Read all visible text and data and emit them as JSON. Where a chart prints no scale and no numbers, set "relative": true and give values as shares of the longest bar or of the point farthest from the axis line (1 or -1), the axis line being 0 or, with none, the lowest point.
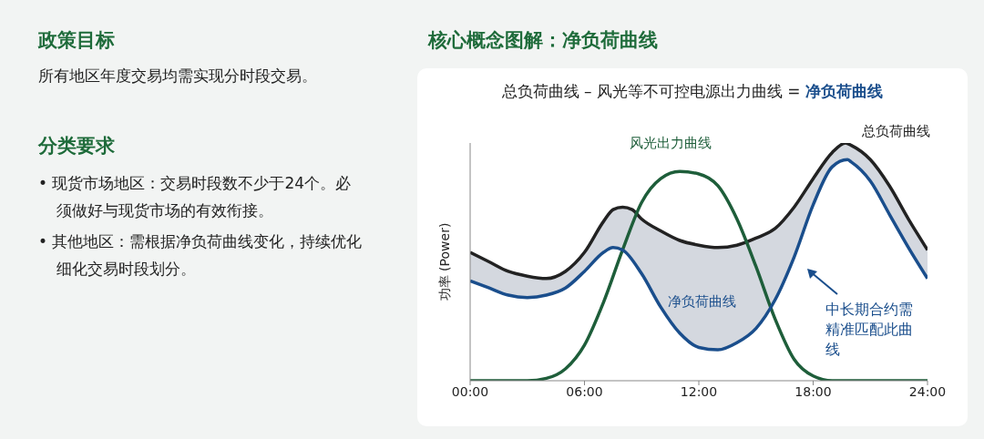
{
  "chart_data": [
    {
      "type": "other",
      "title": "政策目标",
      "subtitle": "所有地区年度交易均需实现分时段交易。",
      "annotations": [
        "分类要求",
        "• 现货市场地区：交易时段数不少于24个。必须做好与现货市场的有效衔接。",
        "• 其他地区：需根据净负荷曲线变化，持续优化细化交易时段划分。"
      ]
    },
    {
      "type": "line",
      "title": "核心概念图解：净负荷曲线",
      "subtitle": "总负荷曲线 – 风光等不可控电源出力曲线 = 净负荷曲线",
      "ylabel": "功率 (Power)",
      "relative": true,
      "xlim": [
        0,
        24
      ],
      "xticks": [
        {
          "value": 0,
          "label": "00:00"
        },
        {
          "value": 6,
          "label": "06:00"
        },
        {
          "value": 12,
          "label": "12:00"
        },
        {
          "value": 18,
          "label": "18:00"
        },
        {
          "value": 24,
          "label": "24:00"
        }
      ],
      "series": [
        {
          "name": "总负荷曲线",
          "color": "#222222",
          "x": [
            0,
            1,
            2,
            3,
            4,
            5,
            6,
            7,
            7.5,
            8,
            8.5,
            9,
            10,
            11,
            12,
            13,
            14,
            15,
            16,
            17,
            18,
            19,
            19.7,
            20,
            21,
            22,
            23,
            24
          ],
          "values": [
            0.54,
            0.5,
            0.46,
            0.44,
            0.43,
            0.46,
            0.54,
            0.67,
            0.72,
            0.73,
            0.72,
            0.68,
            0.63,
            0.59,
            0.57,
            0.56,
            0.57,
            0.6,
            0.64,
            0.73,
            0.85,
            0.96,
            1,
            0.99,
            0.93,
            0.82,
            0.68,
            0.55
          ]
        },
        {
          "name": "风光出力曲线",
          "color": "#1e5e3a",
          "x": [
            0,
            3,
            4,
            5,
            6,
            7,
            8,
            9,
            10,
            11,
            12,
            13,
            14,
            15,
            16,
            17,
            18,
            19,
            20,
            24
          ],
          "values": [
            0,
            0,
            0.01,
            0.05,
            0.15,
            0.33,
            0.55,
            0.75,
            0.85,
            0.88,
            0.87,
            0.82,
            0.68,
            0.48,
            0.26,
            0.09,
            0.02,
            0,
            0,
            0
          ]
        },
        {
          "name": "净负荷曲线",
          "color": "#1a4e8c",
          "x": [
            0,
            1,
            2,
            3,
            4,
            5,
            6,
            7,
            7.5,
            8,
            9,
            10,
            11,
            12,
            13,
            14,
            15,
            16,
            17,
            18,
            19,
            19.8,
            20,
            21,
            22,
            23,
            24
          ],
          "values": [
            0.42,
            0.39,
            0.36,
            0.35,
            0.36,
            0.39,
            0.46,
            0.54,
            0.56,
            0.55,
            0.45,
            0.31,
            0.2,
            0.14,
            0.13,
            0.16,
            0.22,
            0.34,
            0.52,
            0.74,
            0.9,
            0.93,
            0.92,
            0.84,
            0.7,
            0.56,
            0.43
          ],
          "lower": [
            0.42,
            0.39,
            0.36,
            0.35,
            0.36,
            0.39,
            0.46,
            0.54,
            0.56,
            0.55,
            0.45,
            0.31,
            0.2,
            0.14,
            0.13,
            0.16,
            0.22,
            0.34,
            0.52,
            0.74,
            0.9,
            0.93,
            0.92,
            0.84,
            0.7,
            0.56,
            0.43
          ],
          "upper": [
            0.54,
            0.5,
            0.46,
            0.44,
            0.43,
            0.46,
            0.54,
            0.67,
            0.72,
            0.73,
            0.68,
            0.63,
            0.59,
            0.57,
            0.56,
            0.57,
            0.6,
            0.64,
            0.73,
            0.85,
            0.96,
            0.995,
            0.99,
            0.93,
            0.82,
            0.68,
            0.55
          ]
        }
      ],
      "annotations": [
        "中长期合约需精准匹配此曲线"
      ]
    }
  ]
}
